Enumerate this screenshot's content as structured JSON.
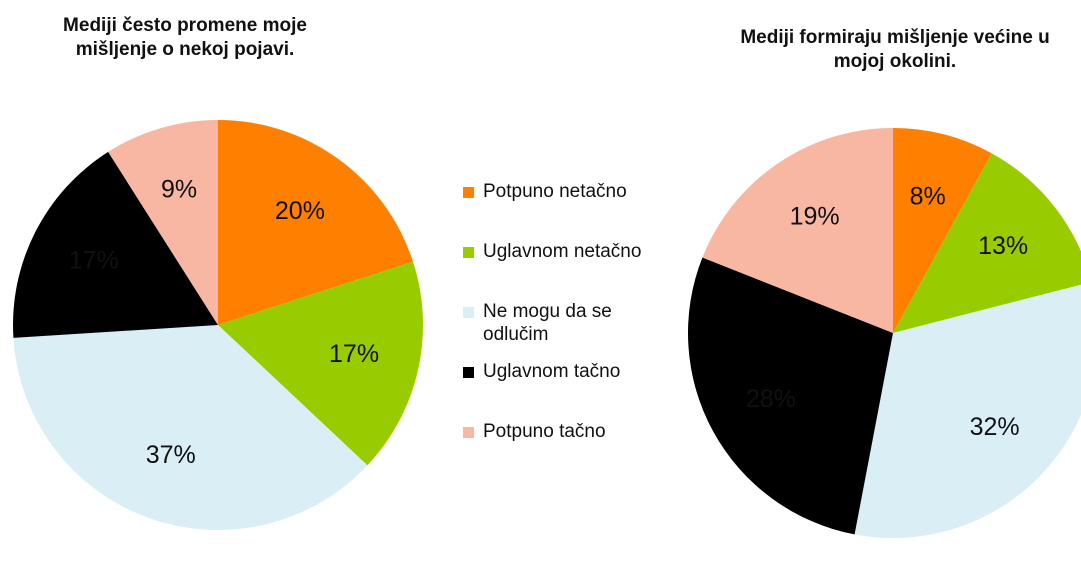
{
  "legend": {
    "labels": [
      "Potpuno netačno",
      "Uglavnom netačno",
      "Ne mogu da se odlučim",
      "Uglavnom tačno",
      "Potpuno tačno"
    ],
    "colors": [
      "#ff7f00",
      "#99cc00",
      "#d9eef5",
      "#000000",
      "#f7b7a3"
    ]
  },
  "chart_data": [
    {
      "type": "pie",
      "title": "Mediji često promene moje mišljenje o nekoj pojavi.",
      "values": [
        20,
        17,
        37,
        17,
        9
      ],
      "value_labels": [
        "20%",
        "17%",
        "37%",
        "17%",
        "9%"
      ]
    },
    {
      "type": "pie",
      "title": "Mediji formiraju mišljenje većine u mojoj okolini.",
      "values": [
        8,
        13,
        32,
        28,
        19
      ],
      "value_labels": [
        "8%",
        "13%",
        "32%",
        "28%",
        "19%"
      ]
    }
  ]
}
